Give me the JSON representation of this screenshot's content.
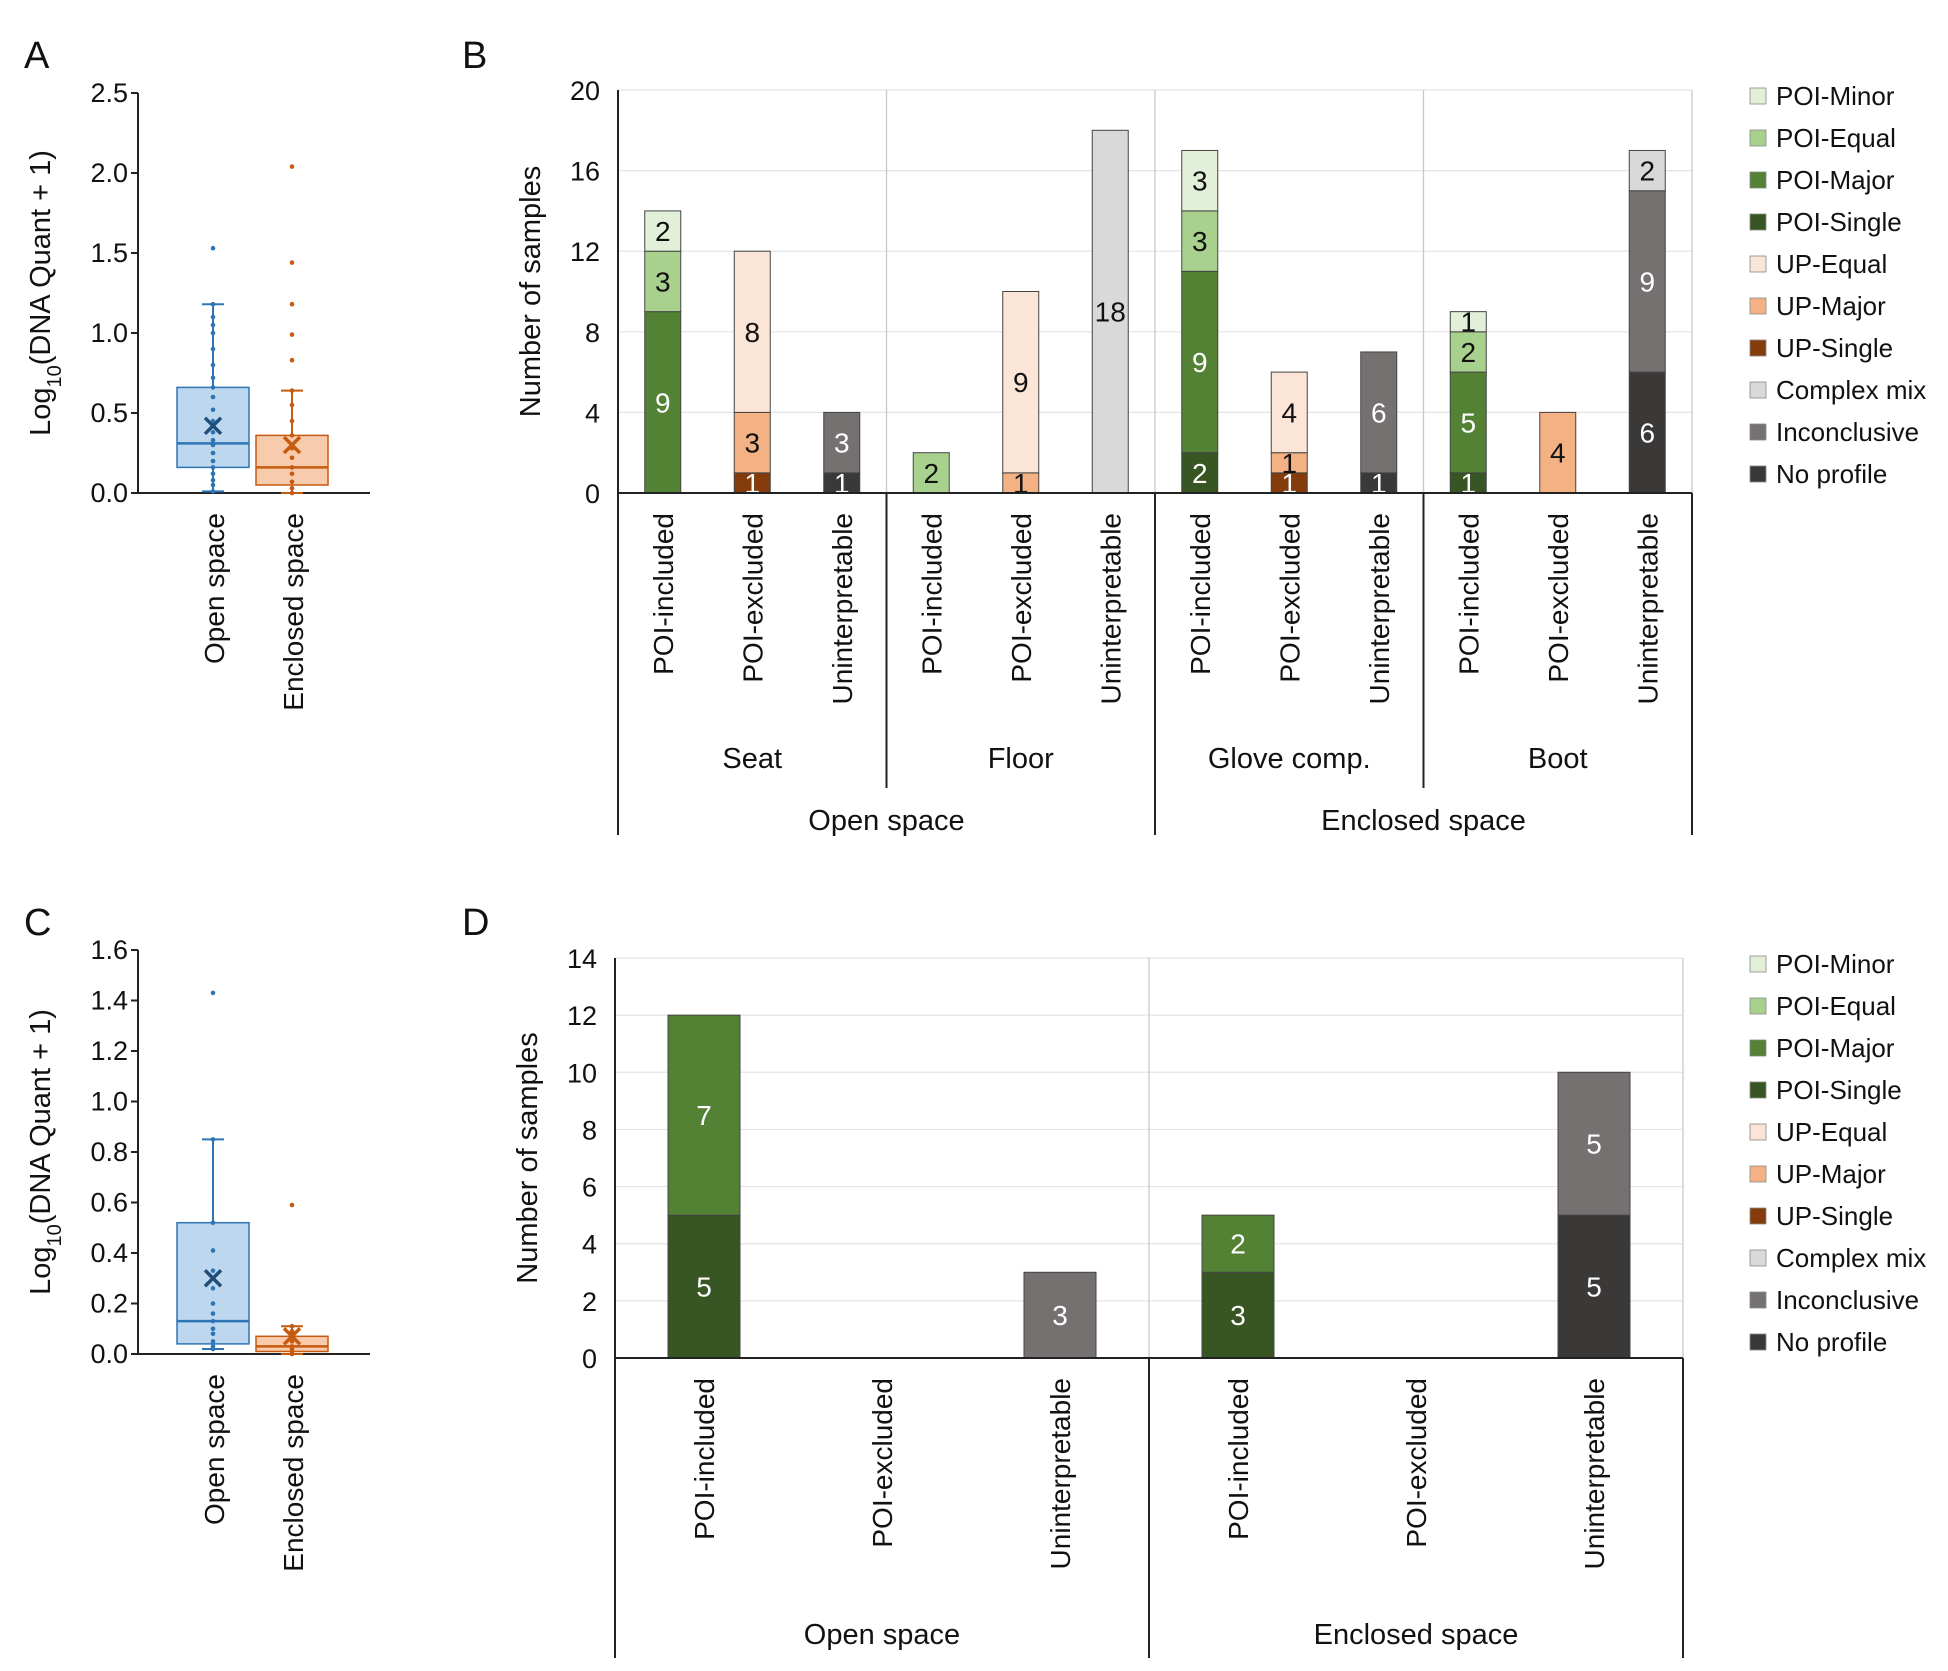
{
  "colors": {
    "POI-Minor": "#e2f0d9",
    "POI-Equal": "#a9d18e",
    "POI-Major": "#548235",
    "POI-Single": "#375623",
    "UP-Equal": "#fbe5d6",
    "UP-Major": "#f4b183",
    "UP-Single": "#843c0c",
    "Complex mix": "#d9d9d9",
    "Inconclusive": "#767171",
    "No profile": "#3b3838",
    "open_box": "#bdd7ee",
    "open_line": "#2e75b6",
    "open_mean": "#1f4e79",
    "enclosed_box": "#f8cbad",
    "enclosed_line": "#c55a11",
    "enclosed_mean": "#c55a11"
  },
  "chart_data": [
    {
      "panel": "A",
      "type": "box",
      "ylabel": "Log10(DNA Quant + 1)",
      "ylim": [
        0,
        2.5
      ],
      "yticks": [
        "0.0",
        "0.5",
        "1.0",
        "1.5",
        "2.0",
        "2.5"
      ],
      "yticks_values": [
        0,
        0.5,
        1.0,
        1.5,
        2.0,
        2.5
      ],
      "categories": [
        "Open space",
        "Enclosed space"
      ],
      "boxes": [
        {
          "name": "Open space",
          "min": 0.01,
          "q1": 0.16,
          "median": 0.31,
          "q3": 0.66,
          "max": 1.18,
          "mean": 0.42,
          "points": [
            0.01,
            0.05,
            0.08,
            0.12,
            0.16,
            0.2,
            0.25,
            0.3,
            0.33,
            0.38,
            0.45,
            0.52,
            0.6,
            0.66,
            0.72,
            0.8,
            0.9,
            1.0,
            1.05,
            1.1,
            1.18,
            1.53
          ]
        },
        {
          "name": "Enclosed space",
          "min": 0.0,
          "q1": 0.05,
          "median": 0.16,
          "q3": 0.36,
          "max": 0.64,
          "mean": 0.3,
          "points": [
            0.0,
            0.03,
            0.07,
            0.12,
            0.16,
            0.22,
            0.28,
            0.36,
            0.45,
            0.55,
            0.64,
            0.83,
            0.99,
            1.18,
            1.44,
            2.04
          ]
        }
      ]
    },
    {
      "panel": "B",
      "type": "stacked_bar",
      "ylabel": "Number of samples",
      "ylim": [
        0,
        20
      ],
      "yticks": [
        "0",
        "4",
        "8",
        "12",
        "16",
        "20"
      ],
      "yticks_values": [
        0,
        4,
        8,
        12,
        16,
        20
      ],
      "series_order": [
        "No profile",
        "Inconclusive",
        "Complex mix",
        "UP-Single",
        "UP-Major",
        "UP-Equal",
        "POI-Single",
        "POI-Major",
        "POI-Equal",
        "POI-Minor"
      ],
      "bars": [
        {
          "category": "POI-included",
          "segments": [
            {
              "series": "POI-Major",
              "value": 9
            },
            {
              "series": "POI-Equal",
              "value": 3
            },
            {
              "series": "POI-Minor",
              "value": 2
            }
          ]
        },
        {
          "category": "POI-excluded",
          "segments": [
            {
              "series": "UP-Single",
              "value": 1
            },
            {
              "series": "UP-Major",
              "value": 3
            },
            {
              "series": "UP-Equal",
              "value": 8
            }
          ]
        },
        {
          "category": "Uninterpretable",
          "segments": [
            {
              "series": "No profile",
              "value": 1
            },
            {
              "series": "Inconclusive",
              "value": 3
            }
          ]
        },
        {
          "category": "POI-included",
          "segments": [
            {
              "series": "POI-Equal",
              "value": 2
            }
          ]
        },
        {
          "category": "POI-excluded",
          "segments": [
            {
              "series": "UP-Major",
              "value": 1
            },
            {
              "series": "UP-Equal",
              "value": 9
            }
          ]
        },
        {
          "category": "Uninterpretable",
          "segments": [
            {
              "series": "Complex mix",
              "value": 18
            }
          ]
        },
        {
          "category": "POI-included",
          "segments": [
            {
              "series": "POI-Single",
              "value": 2
            },
            {
              "series": "POI-Major",
              "value": 9
            },
            {
              "series": "POI-Equal",
              "value": 3
            },
            {
              "series": "POI-Minor",
              "value": 3
            }
          ]
        },
        {
          "category": "POI-excluded",
          "segments": [
            {
              "series": "UP-Single",
              "value": 1
            },
            {
              "series": "UP-Major",
              "value": 1
            },
            {
              "series": "UP-Equal",
              "value": 4
            }
          ]
        },
        {
          "category": "Uninterpretable",
          "segments": [
            {
              "series": "No profile",
              "value": 1
            },
            {
              "series": "Inconclusive",
              "value": 6
            }
          ]
        },
        {
          "category": "POI-included",
          "segments": [
            {
              "series": "POI-Single",
              "value": 1
            },
            {
              "series": "POI-Major",
              "value": 5
            },
            {
              "series": "POI-Equal",
              "value": 2
            },
            {
              "series": "POI-Minor",
              "value": 1
            }
          ]
        },
        {
          "category": "POI-excluded",
          "segments": [
            {
              "series": "UP-Major",
              "value": 4
            }
          ]
        },
        {
          "category": "Uninterpretable",
          "segments": [
            {
              "series": "No profile",
              "value": 6
            },
            {
              "series": "Inconclusive",
              "value": 9
            },
            {
              "series": "Complex mix",
              "value": 2
            }
          ]
        }
      ],
      "subgroups": [
        {
          "label": "Seat",
          "bars": [
            0,
            2
          ]
        },
        {
          "label": "Floor",
          "bars": [
            3,
            5
          ]
        },
        {
          "label": "Glove comp.",
          "bars": [
            6,
            8
          ]
        },
        {
          "label": "Boot",
          "bars": [
            9,
            11
          ]
        }
      ],
      "groups": [
        {
          "label": "Open space",
          "bars": [
            0,
            5
          ]
        },
        {
          "label": "Enclosed space",
          "bars": [
            6,
            11
          ]
        }
      ]
    },
    {
      "panel": "C",
      "type": "box",
      "ylabel": "Log10(DNA Quant + 1)",
      "ylim": [
        0,
        1.6
      ],
      "yticks": [
        "0.0",
        "0.2",
        "0.4",
        "0.6",
        "0.8",
        "1.0",
        "1.2",
        "1.4",
        "1.6"
      ],
      "yticks_values": [
        0,
        0.2,
        0.4,
        0.6,
        0.8,
        1.0,
        1.2,
        1.4,
        1.6
      ],
      "categories": [
        "Open space",
        "Enclosed space"
      ],
      "boxes": [
        {
          "name": "Open space",
          "min": 0.02,
          "q1": 0.04,
          "median": 0.13,
          "q3": 0.52,
          "max": 0.85,
          "mean": 0.3,
          "points": [
            0.02,
            0.03,
            0.05,
            0.08,
            0.1,
            0.13,
            0.16,
            0.2,
            0.26,
            0.33,
            0.41,
            0.52,
            0.85,
            1.43
          ]
        },
        {
          "name": "Enclosed space",
          "min": 0.0,
          "q1": 0.01,
          "median": 0.03,
          "q3": 0.07,
          "max": 0.11,
          "mean": 0.07,
          "points": [
            0.0,
            0.01,
            0.02,
            0.03,
            0.05,
            0.07,
            0.09,
            0.11,
            0.59
          ]
        }
      ]
    },
    {
      "panel": "D",
      "type": "stacked_bar",
      "ylabel": "Number of samples",
      "ylim": [
        0,
        14
      ],
      "yticks": [
        "0",
        "2",
        "4",
        "6",
        "8",
        "10",
        "12",
        "14"
      ],
      "yticks_values": [
        0,
        2,
        4,
        6,
        8,
        10,
        12,
        14
      ],
      "series_order": [
        "No profile",
        "Inconclusive",
        "Complex mix",
        "UP-Single",
        "UP-Major",
        "UP-Equal",
        "POI-Single",
        "POI-Major",
        "POI-Equal",
        "POI-Minor"
      ],
      "bars": [
        {
          "category": "POI-included",
          "segments": [
            {
              "series": "POI-Single",
              "value": 5
            },
            {
              "series": "POI-Major",
              "value": 7
            }
          ]
        },
        {
          "category": "POI-excluded",
          "segments": []
        },
        {
          "category": "Uninterpretable",
          "segments": [
            {
              "series": "Inconclusive",
              "value": 3
            }
          ]
        },
        {
          "category": "POI-included",
          "segments": [
            {
              "series": "POI-Single",
              "value": 3
            },
            {
              "series": "POI-Major",
              "value": 2
            }
          ]
        },
        {
          "category": "POI-excluded",
          "segments": []
        },
        {
          "category": "Uninterpretable",
          "segments": [
            {
              "series": "No profile",
              "value": 5
            },
            {
              "series": "Inconclusive",
              "value": 5
            }
          ]
        }
      ],
      "subgroups": [],
      "groups": [
        {
          "label": "Open space",
          "bars": [
            0,
            2
          ]
        },
        {
          "label": "Enclosed space",
          "bars": [
            3,
            5
          ]
        }
      ]
    }
  ],
  "legend": [
    "POI-Minor",
    "POI-Equal",
    "POI-Major",
    "POI-Single",
    "UP-Equal",
    "UP-Major",
    "UP-Single",
    "Complex mix",
    "Inconclusive",
    "No profile"
  ]
}
